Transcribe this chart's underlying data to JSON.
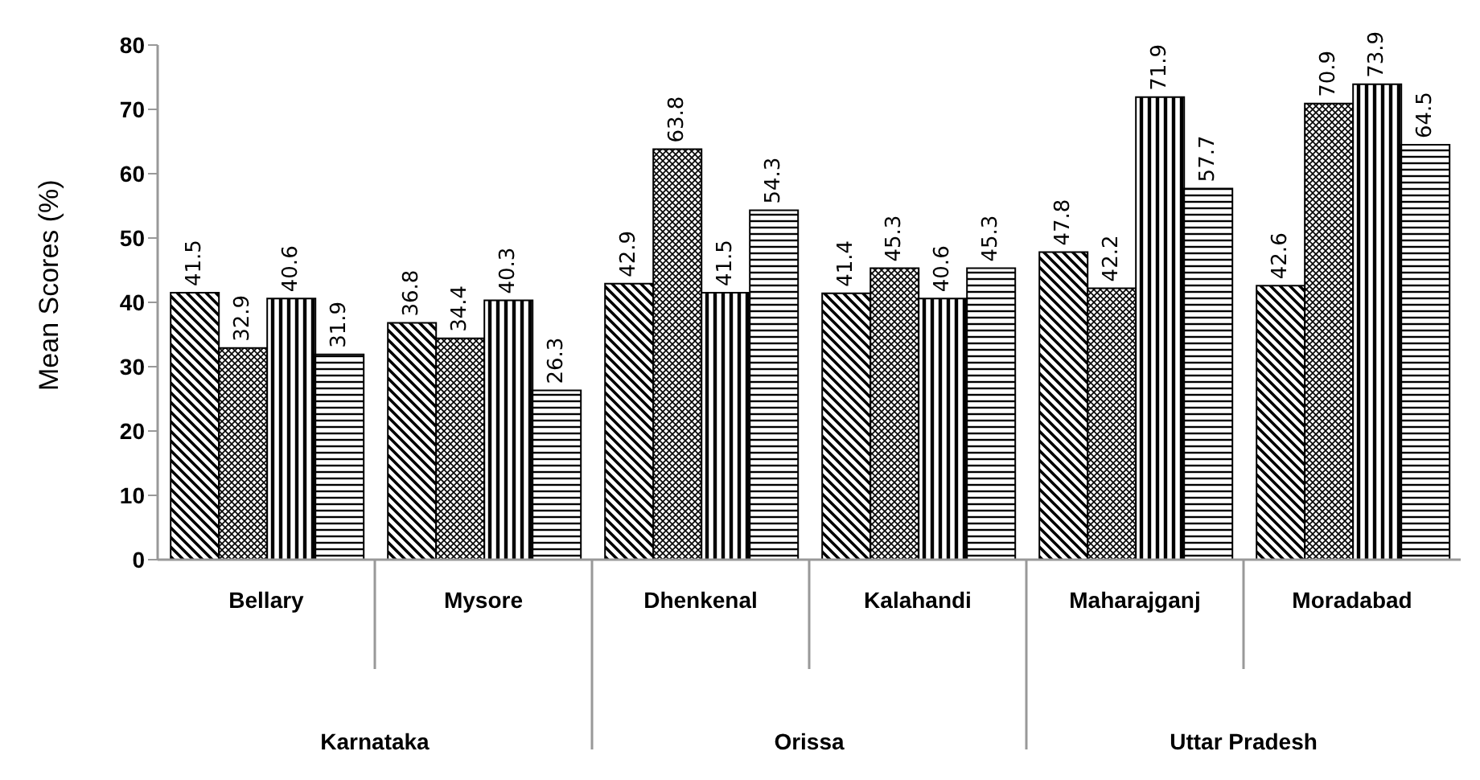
{
  "chart_data": {
    "type": "bar",
    "ylabel": "Mean Scores (%)",
    "categories": [
      "Bellary",
      "Mysore",
      "Dhenkenal",
      "Kalahandi",
      "Maharajganj",
      "Moradabad"
    ],
    "series": [
      {
        "color": "#000000",
        "values": [
          41.5,
          36.8,
          42.9,
          41.4,
          47.8,
          42.6
        ]
      },
      {
        "color": "#000000",
        "values": [
          32.9,
          34.4,
          63.8,
          45.3,
          42.2,
          70.9
        ]
      },
      {
        "color": "#000000",
        "values": [
          40.6,
          40.3,
          41.5,
          40.6,
          71.9,
          73.9
        ]
      },
      {
        "color": "#000000",
        "values": [
          31.9,
          26.3,
          54.3,
          45.3,
          57.7,
          64.5
        ]
      }
    ],
    "annotations": [
      "Karnataka",
      "Orissa",
      "Uttar Pradesh"
    ],
    "ylim": [
      0,
      80
    ],
    "yticks": [
      0,
      10,
      20,
      30,
      40,
      50,
      60,
      70,
      80
    ],
    "data_labels": true,
    "grid": false,
    "legend": false
  }
}
